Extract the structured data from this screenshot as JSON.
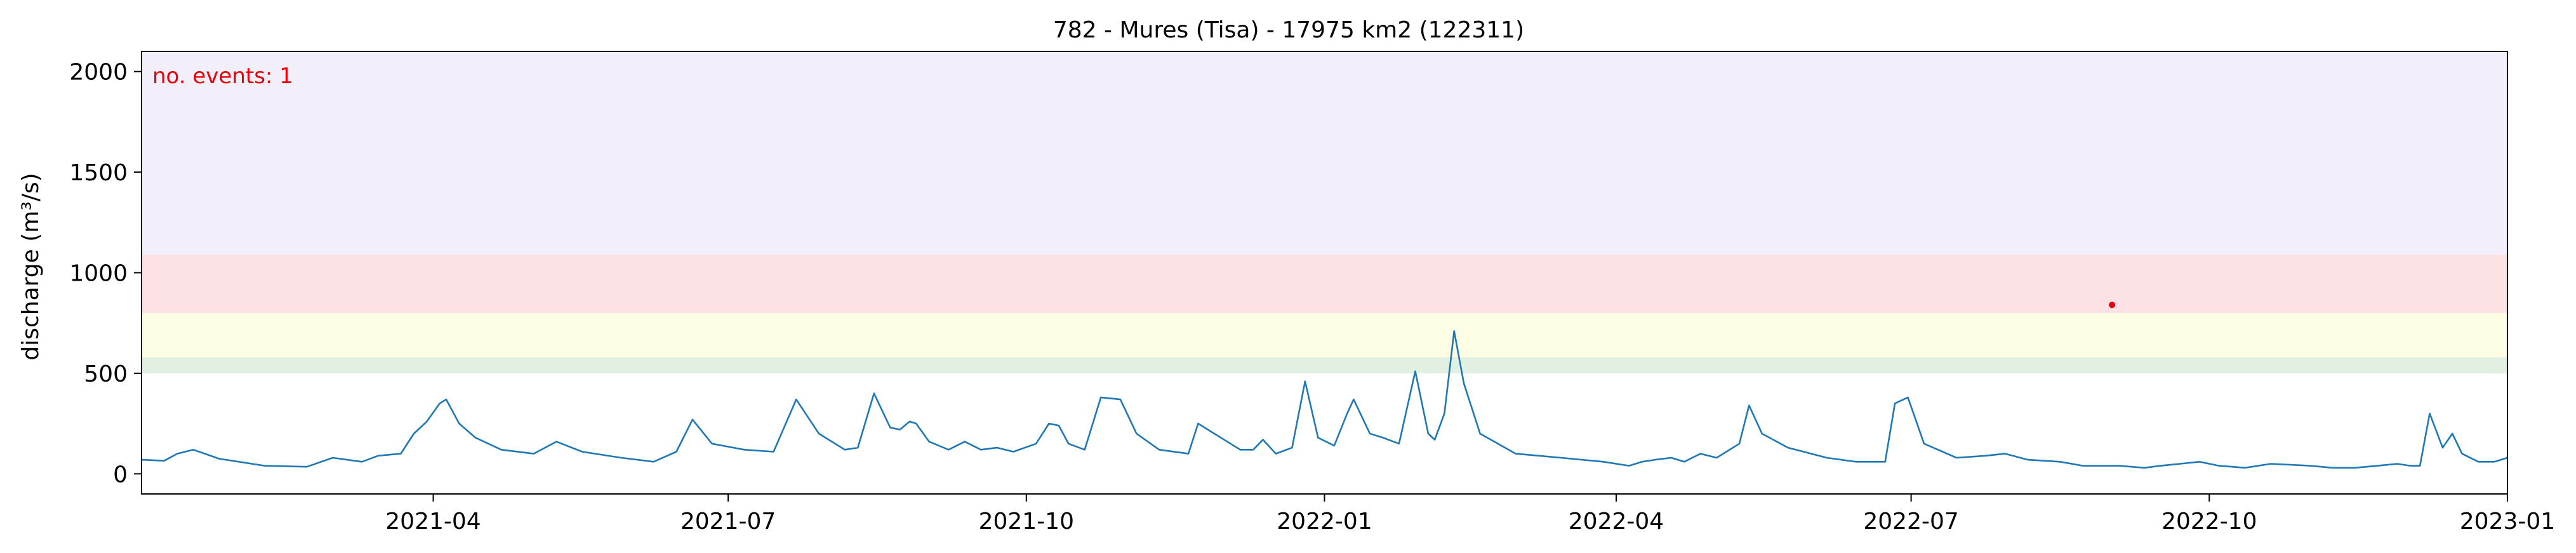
{
  "chart_data": {
    "type": "line",
    "title": "782 - Mures (Tisa) - 17975 km2 (122311)",
    "xlabel": "",
    "ylabel": "discharge (m³/s)",
    "xlim": [
      "2021-01-01",
      "2023-01-01"
    ],
    "ylim": [
      -100,
      2100
    ],
    "x_ticks": [
      "2021-04",
      "2021-07",
      "2021-10",
      "2022-01",
      "2022-04",
      "2022-07",
      "2022-10",
      "2023-01"
    ],
    "y_ticks": [
      0,
      500,
      1000,
      1500,
      2000
    ],
    "grid": false,
    "threshold_bands": [
      {
        "from": 500,
        "to": 580,
        "color": "#e2f0e2"
      },
      {
        "from": 580,
        "to": 800,
        "color": "#fdfde6"
      },
      {
        "from": 800,
        "to": 1090,
        "color": "#fde2e5"
      },
      {
        "from": 1090,
        "to": 2100,
        "color": "#f2effa"
      }
    ],
    "series": [
      {
        "color": "#1f77b4",
        "points": [
          [
            "2021-01-01",
            70
          ],
          [
            "2021-01-08",
            65
          ],
          [
            "2021-01-12",
            100
          ],
          [
            "2021-01-17",
            120
          ],
          [
            "2021-01-25",
            75
          ],
          [
            "2021-02-08",
            40
          ],
          [
            "2021-02-21",
            35
          ],
          [
            "2021-03-01",
            80
          ],
          [
            "2021-03-10",
            60
          ],
          [
            "2021-03-15",
            90
          ],
          [
            "2021-03-22",
            100
          ],
          [
            "2021-03-26",
            200
          ],
          [
            "2021-03-30",
            260
          ],
          [
            "2021-04-03",
            350
          ],
          [
            "2021-04-05",
            370
          ],
          [
            "2021-04-09",
            250
          ],
          [
            "2021-04-14",
            180
          ],
          [
            "2021-04-22",
            120
          ],
          [
            "2021-05-02",
            100
          ],
          [
            "2021-05-09",
            160
          ],
          [
            "2021-05-17",
            110
          ],
          [
            "2021-05-29",
            80
          ],
          [
            "2021-06-08",
            60
          ],
          [
            "2021-06-15",
            110
          ],
          [
            "2021-06-20",
            270
          ],
          [
            "2021-06-26",
            150
          ],
          [
            "2021-07-06",
            120
          ],
          [
            "2021-07-15",
            110
          ],
          [
            "2021-07-22",
            370
          ],
          [
            "2021-07-29",
            200
          ],
          [
            "2021-08-06",
            120
          ],
          [
            "2021-08-10",
            130
          ],
          [
            "2021-08-15",
            400
          ],
          [
            "2021-08-20",
            230
          ],
          [
            "2021-08-23",
            220
          ],
          [
            "2021-08-26",
            260
          ],
          [
            "2021-08-28",
            250
          ],
          [
            "2021-09-01",
            160
          ],
          [
            "2021-09-07",
            120
          ],
          [
            "2021-09-12",
            160
          ],
          [
            "2021-09-17",
            120
          ],
          [
            "2021-09-22",
            130
          ],
          [
            "2021-09-27",
            110
          ],
          [
            "2021-10-04",
            150
          ],
          [
            "2021-10-08",
            250
          ],
          [
            "2021-10-11",
            240
          ],
          [
            "2021-10-14",
            150
          ],
          [
            "2021-10-19",
            120
          ],
          [
            "2021-10-24",
            380
          ],
          [
            "2021-10-30",
            370
          ],
          [
            "2021-11-04",
            200
          ],
          [
            "2021-11-11",
            120
          ],
          [
            "2021-11-20",
            100
          ],
          [
            "2021-11-23",
            250
          ],
          [
            "2021-11-30",
            180
          ],
          [
            "2021-12-06",
            120
          ],
          [
            "2021-12-10",
            120
          ],
          [
            "2021-12-13",
            170
          ],
          [
            "2021-12-17",
            100
          ],
          [
            "2021-12-22",
            130
          ],
          [
            "2021-12-26",
            460
          ],
          [
            "2021-12-30",
            180
          ],
          [
            "2022-01-04",
            140
          ],
          [
            "2022-01-08",
            300
          ],
          [
            "2022-01-10",
            370
          ],
          [
            "2022-01-15",
            200
          ],
          [
            "2022-01-19",
            180
          ],
          [
            "2022-01-24",
            150
          ],
          [
            "2022-01-29",
            510
          ],
          [
            "2022-02-02",
            200
          ],
          [
            "2022-02-04",
            170
          ],
          [
            "2022-02-07",
            300
          ],
          [
            "2022-02-10",
            710
          ],
          [
            "2022-02-13",
            450
          ],
          [
            "2022-02-18",
            200
          ],
          [
            "2022-03-01",
            100
          ],
          [
            "2022-03-15",
            80
          ],
          [
            "2022-03-28",
            60
          ],
          [
            "2022-04-05",
            40
          ],
          [
            "2022-04-09",
            60
          ],
          [
            "2022-04-13",
            70
          ],
          [
            "2022-04-18",
            80
          ],
          [
            "2022-04-22",
            60
          ],
          [
            "2022-04-27",
            100
          ],
          [
            "2022-05-02",
            80
          ],
          [
            "2022-05-09",
            150
          ],
          [
            "2022-05-12",
            340
          ],
          [
            "2022-05-16",
            200
          ],
          [
            "2022-05-24",
            130
          ],
          [
            "2022-06-05",
            80
          ],
          [
            "2022-06-14",
            60
          ],
          [
            "2022-06-23",
            60
          ],
          [
            "2022-06-26",
            350
          ],
          [
            "2022-06-30",
            380
          ],
          [
            "2022-07-05",
            150
          ],
          [
            "2022-07-15",
            80
          ],
          [
            "2022-07-24",
            90
          ],
          [
            "2022-07-30",
            100
          ],
          [
            "2022-08-06",
            70
          ],
          [
            "2022-08-16",
            60
          ],
          [
            "2022-08-23",
            40
          ],
          [
            "2022-09-03",
            40
          ],
          [
            "2022-09-11",
            30
          ],
          [
            "2022-09-16",
            40
          ],
          [
            "2022-09-22",
            50
          ],
          [
            "2022-09-28",
            60
          ],
          [
            "2022-10-04",
            40
          ],
          [
            "2022-10-12",
            30
          ],
          [
            "2022-10-20",
            50
          ],
          [
            "2022-11-01",
            40
          ],
          [
            "2022-11-08",
            30
          ],
          [
            "2022-11-15",
            30
          ],
          [
            "2022-11-22",
            40
          ],
          [
            "2022-11-28",
            50
          ],
          [
            "2022-12-02",
            40
          ],
          [
            "2022-12-05",
            40
          ],
          [
            "2022-12-08",
            300
          ],
          [
            "2022-12-12",
            130
          ],
          [
            "2022-12-15",
            200
          ],
          [
            "2022-12-18",
            100
          ],
          [
            "2022-12-23",
            60
          ],
          [
            "2022-12-28",
            60
          ],
          [
            "2023-01-01",
            80
          ]
        ]
      }
    ],
    "event_markers": [
      {
        "x": "2022-09-01",
        "y": 840,
        "color": "#e8000b"
      }
    ],
    "annotation": {
      "text": "no. events: 1",
      "color": "#e8000b",
      "placement": "top-left"
    }
  }
}
